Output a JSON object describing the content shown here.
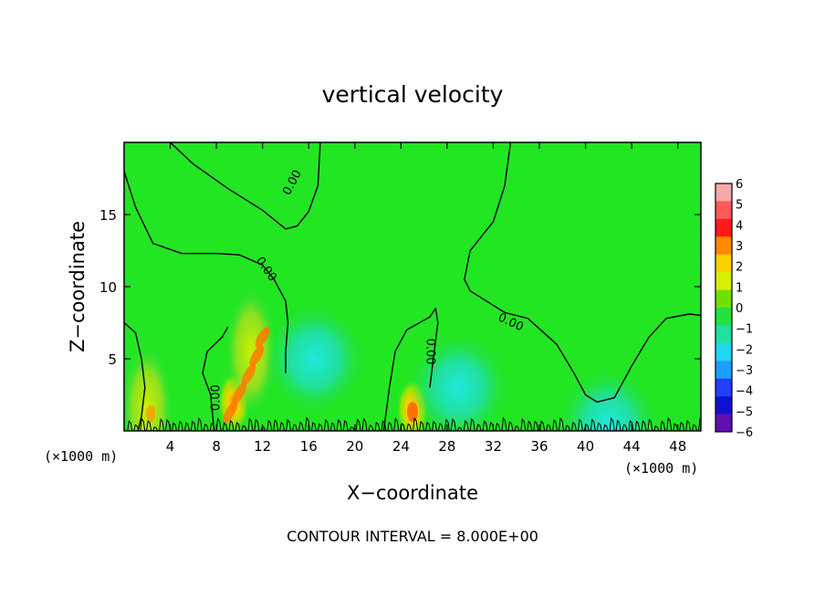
{
  "chart_data": {
    "type": "heatmap",
    "title": "vertical velocity",
    "xlabel": "X−coordinate",
    "ylabel": "Z−coordinate",
    "x_unit_label": "(×1000 m)",
    "x_unit_label_right": "(×1000 m)",
    "footer": "CONTOUR INTERVAL = 8.000E+00",
    "xlim": [
      0,
      50
    ],
    "ylim": [
      0,
      20
    ],
    "x_ticks": [
      4,
      8,
      12,
      16,
      20,
      24,
      28,
      32,
      36,
      40,
      44,
      48
    ],
    "x_tick_labels": [
      "4",
      "8",
      "12",
      "16",
      "20",
      "24",
      "28",
      "32",
      "36",
      "40",
      "44",
      "48"
    ],
    "y_ticks": [
      5,
      10,
      15
    ],
    "y_tick_labels": [
      "5",
      "10",
      "15"
    ],
    "contour_label": "0.00",
    "contour_level": 0,
    "colorbar": {
      "levels": [
        6,
        5,
        4,
        3,
        2,
        1,
        0,
        -1,
        -2,
        -3,
        -4,
        -5,
        -6
      ],
      "labels": [
        "6",
        "5",
        "4",
        "3",
        "2",
        "1",
        "0",
        "−1",
        "−2",
        "−3",
        "−4",
        "−5",
        "−6"
      ],
      "colors": [
        "#f7a8a8",
        "#ff5a5a",
        "#ff1a1a",
        "#ff8a00",
        "#ffd000",
        "#d6f000",
        "#70e000",
        "#26e040",
        "#20e0a0",
        "#20d8f0",
        "#1aa0ff",
        "#2040ff",
        "#1010d0",
        "#6010b0"
      ]
    },
    "background_value": 0,
    "features": [
      {
        "kind": "updraft",
        "x": 9.5,
        "z": 2,
        "peak": 3
      },
      {
        "kind": "updraft",
        "x": 11,
        "z": 5.5,
        "peak": 2
      },
      {
        "kind": "updraft",
        "x": 2,
        "z": 1.5,
        "peak": 2
      },
      {
        "kind": "updraft",
        "x": 25,
        "z": 1.5,
        "peak": 3
      },
      {
        "kind": "downdraft",
        "x": 16.5,
        "z": 5,
        "peak": -1.5
      },
      {
        "kind": "downdraft",
        "x": 29,
        "z": 3,
        "peak": -1
      },
      {
        "kind": "downdraft",
        "x": 42,
        "z": 0.5,
        "peak": -1
      }
    ],
    "contours": [
      {
        "label": "0.00",
        "points": [
          [
            4,
            20
          ],
          [
            6,
            18.5
          ],
          [
            9,
            16.8
          ],
          [
            12,
            15.3
          ],
          [
            14,
            14
          ],
          [
            15,
            14.2
          ],
          [
            16,
            15.2
          ],
          [
            16.8,
            17
          ],
          [
            17,
            20
          ]
        ]
      },
      {
        "label": "0.00",
        "points": [
          [
            0,
            18
          ],
          [
            1,
            15.5
          ],
          [
            2.5,
            13
          ],
          [
            5,
            12.3
          ],
          [
            8,
            12.3
          ],
          [
            10,
            12.2
          ],
          [
            12,
            11.5
          ],
          [
            13,
            10.5
          ],
          [
            14,
            9
          ],
          [
            14.2,
            7.5
          ],
          [
            14,
            5.5
          ],
          [
            14,
            4
          ]
        ]
      },
      {
        "label": "0.00",
        "points": [
          [
            33.5,
            20
          ],
          [
            33,
            17
          ],
          [
            32,
            14.5
          ],
          [
            30,
            12.5
          ],
          [
            29.5,
            10.5
          ],
          [
            30,
            9.7
          ],
          [
            33,
            8.2
          ],
          [
            35,
            7.8
          ],
          [
            37.5,
            6
          ],
          [
            39,
            4
          ],
          [
            40,
            2.5
          ],
          [
            41,
            2
          ],
          [
            42.5,
            2.3
          ],
          [
            44,
            4.5
          ],
          [
            45.5,
            6.5
          ],
          [
            47,
            7.8
          ],
          [
            49,
            8.1
          ],
          [
            50,
            8
          ]
        ]
      },
      {
        "label": "0.00",
        "points": [
          [
            22.5,
            0
          ],
          [
            23,
            3
          ],
          [
            23.5,
            5.5
          ],
          [
            24.5,
            7
          ],
          [
            26.5,
            7.9
          ],
          [
            27,
            8.5
          ],
          [
            27.2,
            7.5
          ],
          [
            26.8,
            5
          ],
          [
            26.5,
            3
          ]
        ]
      },
      {
        "label": "0.00",
        "points": [
          [
            7.8,
            0
          ],
          [
            7.5,
            2.5
          ],
          [
            6.8,
            4
          ],
          [
            7.2,
            5.5
          ],
          [
            8.5,
            6.5
          ],
          [
            9,
            7.2
          ]
        ]
      },
      {
        "label": "0.00",
        "points": [
          [
            0,
            7.5
          ],
          [
            1,
            6.8
          ],
          [
            1.5,
            5
          ],
          [
            1.8,
            3
          ],
          [
            1.5,
            1
          ],
          [
            1.2,
            0
          ]
        ]
      }
    ]
  }
}
